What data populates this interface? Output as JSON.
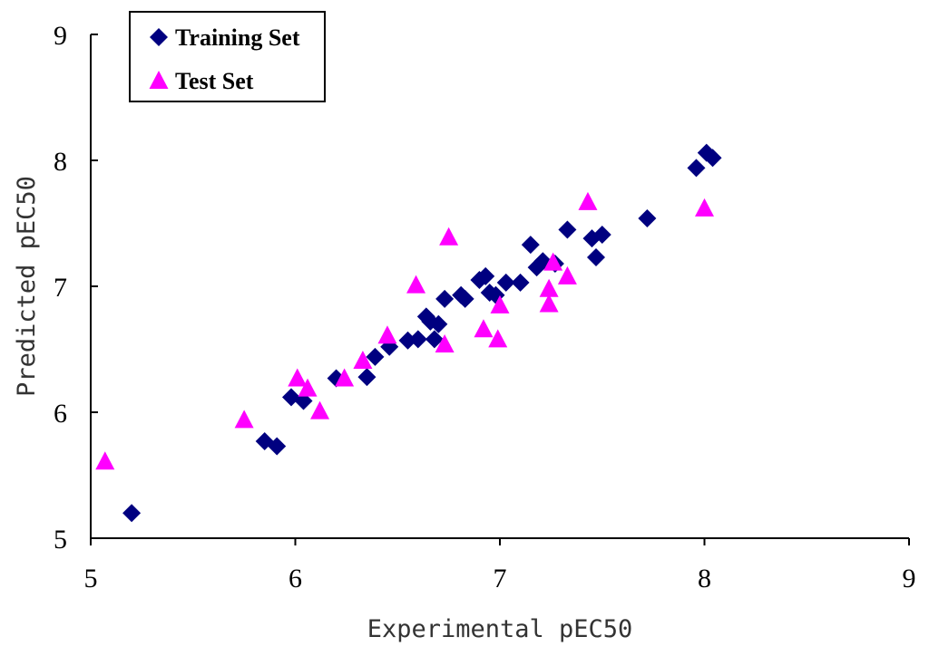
{
  "chart_data": {
    "type": "scatter",
    "title": "",
    "xlabel": "Experimental pEC50",
    "ylabel": "Predicted pEC50",
    "xlim": [
      5,
      9
    ],
    "ylim": [
      5,
      9
    ],
    "xticks": [
      "5",
      "6",
      "7",
      "8",
      "9"
    ],
    "yticks": [
      "5",
      "6",
      "7",
      "8",
      "9"
    ],
    "grid": false,
    "legend_position": "top-left",
    "series": [
      {
        "name": "Training Set",
        "marker": "diamond",
        "color": "#000080",
        "points": [
          [
            5.2,
            5.2
          ],
          [
            5.85,
            5.77
          ],
          [
            5.91,
            5.73
          ],
          [
            5.98,
            6.12
          ],
          [
            6.04,
            6.09
          ],
          [
            6.2,
            6.27
          ],
          [
            6.35,
            6.28
          ],
          [
            6.39,
            6.44
          ],
          [
            6.46,
            6.52
          ],
          [
            6.55,
            6.57
          ],
          [
            6.6,
            6.58
          ],
          [
            6.64,
            6.76
          ],
          [
            6.66,
            6.72
          ],
          [
            6.68,
            6.58
          ],
          [
            6.7,
            6.7
          ],
          [
            6.73,
            6.9
          ],
          [
            6.81,
            6.93
          ],
          [
            6.83,
            6.9
          ],
          [
            6.9,
            7.05
          ],
          [
            6.93,
            7.08
          ],
          [
            6.95,
            6.95
          ],
          [
            6.98,
            6.93
          ],
          [
            7.03,
            7.03
          ],
          [
            7.1,
            7.03
          ],
          [
            7.15,
            7.33
          ],
          [
            7.18,
            7.15
          ],
          [
            7.21,
            7.2
          ],
          [
            7.27,
            7.18
          ],
          [
            7.33,
            7.45
          ],
          [
            7.45,
            7.38
          ],
          [
            7.47,
            7.23
          ],
          [
            7.5,
            7.41
          ],
          [
            7.72,
            7.54
          ],
          [
            7.96,
            7.94
          ],
          [
            8.01,
            8.06
          ],
          [
            8.04,
            8.02
          ]
        ]
      },
      {
        "name": "Test Set",
        "marker": "triangle",
        "color": "#ff00ff",
        "points": [
          [
            5.07,
            5.61
          ],
          [
            5.75,
            5.94
          ],
          [
            6.01,
            6.27
          ],
          [
            6.06,
            6.19
          ],
          [
            6.12,
            6.01
          ],
          [
            6.24,
            6.27
          ],
          [
            6.33,
            6.41
          ],
          [
            6.45,
            6.61
          ],
          [
            6.59,
            7.01
          ],
          [
            6.73,
            6.54
          ],
          [
            6.75,
            7.39
          ],
          [
            6.92,
            6.66
          ],
          [
            6.99,
            6.58
          ],
          [
            7.0,
            6.85
          ],
          [
            7.24,
            6.86
          ],
          [
            7.24,
            6.98
          ],
          [
            7.26,
            7.19
          ],
          [
            7.33,
            7.08
          ],
          [
            7.43,
            7.67
          ],
          [
            8.0,
            7.62
          ]
        ]
      }
    ]
  },
  "colors": {
    "training": "#000080",
    "test": "#ff00ff",
    "axis": "#000000"
  }
}
